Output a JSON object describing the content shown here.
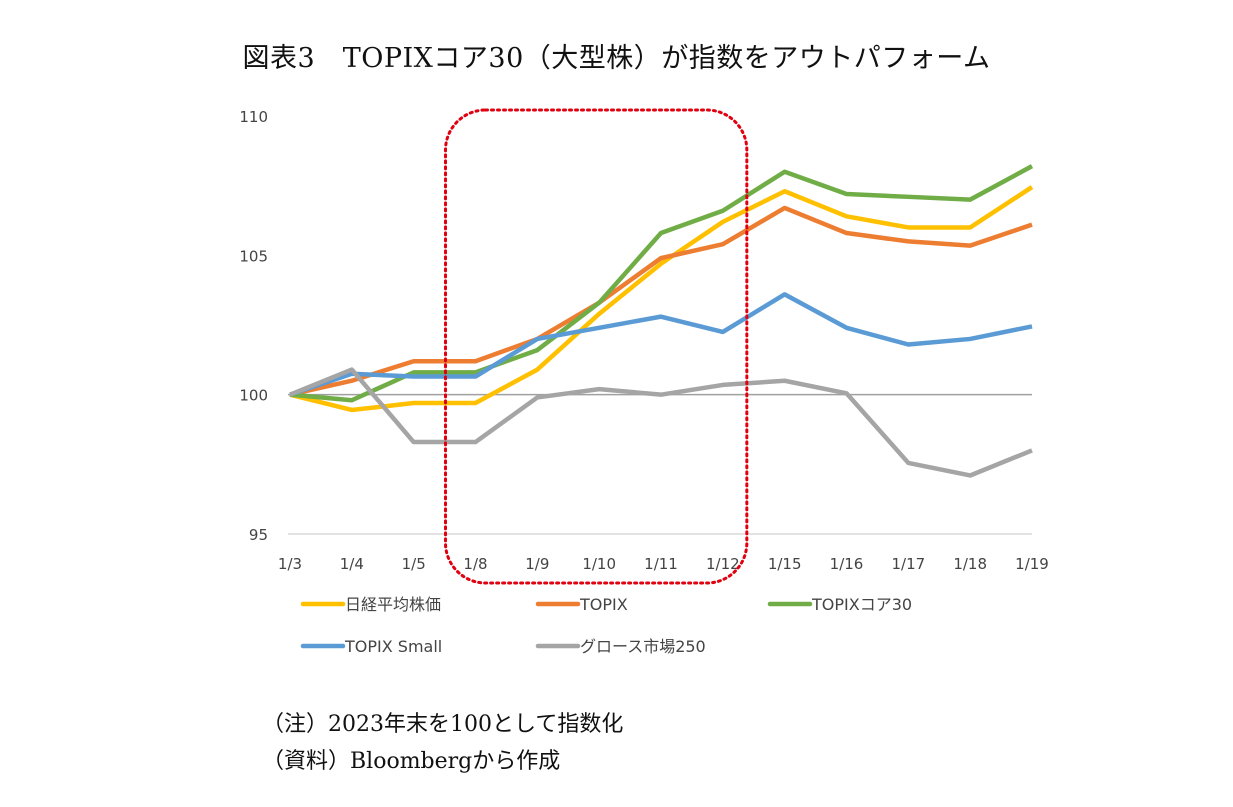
{
  "title": "図表3　TOPIXコア30（大型株）が指数をアウトパフォーム",
  "notes": [
    "（注）2023年末を100として指数化",
    "（資料）Bloombergから作成"
  ],
  "chart_data": {
    "type": "line",
    "categories": [
      "1/3",
      "1/4",
      "1/5",
      "1/8",
      "1/9",
      "1/10",
      "1/11",
      "1/12",
      "1/15",
      "1/16",
      "1/17",
      "1/18",
      "1/19"
    ],
    "ylim": [
      95,
      110
    ],
    "yticks": [
      95,
      100,
      105,
      110
    ],
    "reference_line": 100,
    "legend_position": "bottom",
    "highlight_box": {
      "from": "1/8",
      "to": "1/12",
      "color": "#e0000f",
      "style": "dotted"
    },
    "series": [
      {
        "name": "日経平均株価",
        "color": "#ffc000",
        "values": [
          100,
          99.45,
          99.7,
          99.7,
          100.9,
          102.9,
          104.7,
          106.2,
          107.3,
          106.4,
          106.0,
          106.0,
          107.45
        ]
      },
      {
        "name": "TOPIX",
        "color": "#ed7d31",
        "values": [
          100,
          100.5,
          101.2,
          101.2,
          102.0,
          103.3,
          104.9,
          105.4,
          106.7,
          105.8,
          105.5,
          105.35,
          106.1
        ]
      },
      {
        "name": "TOPIXコア30",
        "color": "#70ad47",
        "values": [
          100,
          99.8,
          100.8,
          100.8,
          101.6,
          103.3,
          105.8,
          106.6,
          108.0,
          107.2,
          107.1,
          107.0,
          108.2
        ]
      },
      {
        "name": "TOPIX Small",
        "color": "#5b9bd5",
        "values": [
          100,
          100.75,
          100.65,
          100.65,
          102.0,
          102.4,
          102.8,
          102.25,
          103.6,
          102.4,
          101.8,
          102.0,
          102.45
        ]
      },
      {
        "name": "グロース市場250",
        "color": "#a5a5a5",
        "values": [
          100,
          100.9,
          98.3,
          98.3,
          99.9,
          100.2,
          100.0,
          100.35,
          100.5,
          100.05,
          97.55,
          97.1,
          98.0
        ]
      }
    ]
  }
}
